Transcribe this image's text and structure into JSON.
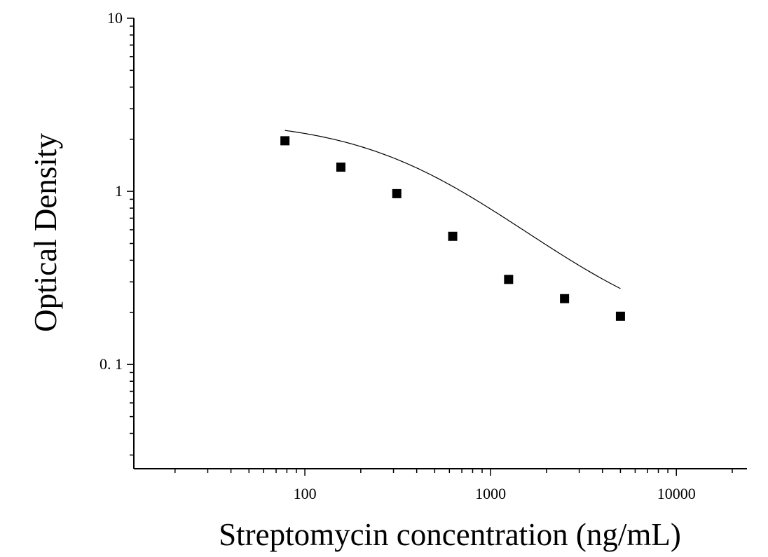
{
  "chart_data": {
    "type": "scatter",
    "title": "",
    "xlabel": "Streptomycin concentration (ng/mL)",
    "ylabel": "Optical Density",
    "x_scale": "log",
    "y_scale": "log",
    "xlim": [
      12,
      24000
    ],
    "ylim": [
      0.025,
      10
    ],
    "x_ticks": [
      {
        "value": 100,
        "label": "100"
      },
      {
        "value": 1000,
        "label": "1000"
      },
      {
        "value": 10000,
        "label": "10000"
      }
    ],
    "y_ticks": [
      {
        "value": 10,
        "label": "10"
      },
      {
        "value": 1,
        "label": "1"
      },
      {
        "value": 0.1,
        "label": "0. 1"
      }
    ],
    "grid": false,
    "series": [
      {
        "marker": "square",
        "color": "#000000",
        "x": [
          78.125,
          156.25,
          312.5,
          625,
          1250,
          2500,
          5000
        ],
        "y": [
          1.96,
          1.38,
          0.97,
          0.55,
          0.31,
          0.24,
          0.19
        ]
      }
    ],
    "fit_curve": {
      "type": "4PL",
      "color": "#000000",
      "a": 2.6,
      "b": 1.1,
      "c": 400,
      "d": 0.13,
      "x_range": [
        78.125,
        5000
      ]
    }
  }
}
